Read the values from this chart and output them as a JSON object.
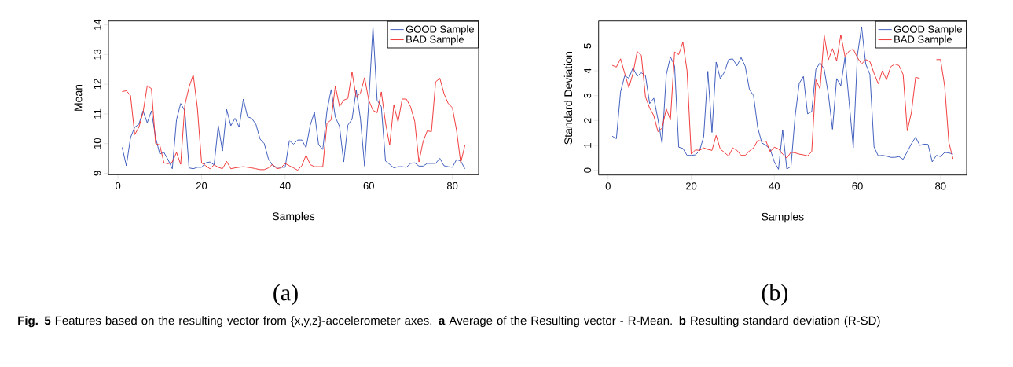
{
  "chart_data": [
    {
      "type": "line",
      "xlabel": "Samples",
      "ylabel": "Mean",
      "xlim": [
        -2.28,
        86.28
      ],
      "ylim": [
        8.95,
        14.13
      ],
      "xticks": [
        0,
        20,
        40,
        60,
        80
      ],
      "yticks": [
        9,
        10,
        11,
        12,
        13,
        14
      ],
      "legend": "top right",
      "x": [
        1,
        2,
        3,
        4,
        5,
        6,
        7,
        8,
        9,
        10,
        11,
        12,
        13,
        14,
        15,
        16,
        17,
        18,
        19,
        20,
        21,
        22,
        23,
        24,
        25,
        26,
        27,
        28,
        29,
        30,
        31,
        32,
        33,
        34,
        35,
        36,
        37,
        38,
        39,
        40,
        41,
        42,
        43,
        44,
        45,
        46,
        47,
        48,
        49,
        50,
        51,
        52,
        53,
        54,
        55,
        56,
        57,
        58,
        59,
        60,
        61,
        62,
        63,
        64,
        65,
        66,
        67,
        68,
        69,
        70,
        71,
        72,
        73,
        74,
        75,
        76,
        77,
        78,
        79,
        80,
        81,
        82,
        83
      ],
      "series": [
        {
          "name": "GOOD Sample",
          "color": "#2f4fb8",
          "values": [
            9.87,
            9.25,
            10.2,
            10.55,
            10.65,
            11.1,
            10.7,
            11.1,
            10.2,
            9.65,
            9.7,
            9.45,
            9.15,
            10.8,
            11.35,
            11.1,
            9.18,
            9.15,
            9.2,
            9.2,
            9.35,
            9.38,
            9.28,
            10.6,
            9.75,
            11.15,
            10.6,
            10.85,
            10.55,
            11.5,
            10.9,
            10.85,
            10.65,
            10.15,
            10.0,
            9.48,
            9.26,
            9.2,
            9.2,
            9.2,
            10.1,
            9.98,
            10.12,
            10.12,
            9.86,
            10.62,
            11.06,
            9.96,
            9.8,
            11.1,
            11.82,
            10.89,
            10.58,
            9.38,
            10.62,
            10.82,
            11.8,
            10.84,
            9.24,
            11.4,
            13.94,
            11.46,
            11.24,
            9.41,
            9.3,
            9.18,
            9.22,
            9.22,
            9.2,
            9.33,
            9.35,
            9.24,
            9.24,
            9.33,
            9.33,
            9.33,
            9.5,
            9.25,
            9.22,
            9.2,
            9.46,
            9.41,
            9.15
          ]
        },
        {
          "name": "BAD Sample",
          "color": "#f02828",
          "values": [
            11.75,
            11.78,
            11.62,
            10.3,
            10.55,
            11.05,
            11.95,
            11.85,
            10.0,
            9.95,
            9.35,
            9.32,
            9.38,
            9.7,
            9.3,
            11.3,
            11.9,
            12.32,
            11.2,
            9.35,
            9.25,
            9.15,
            9.28,
            9.2,
            9.15,
            9.4,
            9.15,
            9.18,
            9.2,
            9.22,
            9.2,
            9.18,
            9.15,
            9.12,
            9.12,
            9.18,
            9.3,
            9.15,
            9.18,
            9.33,
            9.25,
            9.18,
            9.1,
            9.26,
            9.61,
            9.29,
            9.22,
            9.22,
            9.22,
            10.68,
            10.8,
            11.94,
            11.25,
            11.46,
            11.52,
            12.41,
            11.55,
            11.7,
            12.22,
            11.46,
            11.12,
            11.04,
            11.74,
            10.7,
            9.94,
            11.3,
            10.73,
            11.5,
            11.5,
            11.24,
            10.75,
            9.38,
            10.07,
            10.43,
            10.4,
            12.08,
            12.2,
            11.68,
            11.35,
            11.21,
            10.45,
            9.35,
            9.94
          ]
        }
      ],
      "annotations": [
        "(a)",
        "**Fig. 5** Features based on the resulting vector from {x,y,z}-accelerometer axes. **a** Average of the Resulting vector - R-Mean. **b** Resulting standard deviation (R-SD)"
      ]
    },
    {
      "type": "line",
      "xlabel": "Samples",
      "ylabel": "Standard Deviation",
      "xlim": [
        -2.28,
        86.28
      ],
      "ylim": [
        -0.19,
        6.0
      ],
      "xticks": [
        0,
        20,
        40,
        60,
        80
      ],
      "yticks": [
        0,
        1,
        2,
        3,
        4,
        5
      ],
      "legend": "top right",
      "x": [
        1,
        2,
        3,
        4,
        5,
        6,
        7,
        8,
        9,
        10,
        11,
        12,
        13,
        14,
        15,
        16,
        17,
        18,
        19,
        20,
        21,
        22,
        23,
        24,
        25,
        26,
        27,
        28,
        29,
        30,
        31,
        32,
        33,
        34,
        35,
        36,
        37,
        38,
        39,
        40,
        41,
        42,
        43,
        44,
        45,
        46,
        47,
        48,
        49,
        50,
        51,
        52,
        53,
        54,
        55,
        56,
        57,
        58,
        59,
        60,
        61,
        62,
        63,
        64,
        65,
        66,
        67,
        68,
        69,
        70,
        71,
        72,
        73,
        74,
        75,
        76,
        77,
        78,
        79,
        80,
        81,
        82,
        83
      ],
      "series": [
        {
          "name": "GOOD Sample",
          "color": "#2f4fb8",
          "values": [
            1.37,
            1.27,
            3.15,
            3.8,
            3.7,
            4.12,
            3.78,
            3.92,
            3.8,
            2.68,
            2.9,
            2.05,
            1.07,
            3.85,
            4.56,
            4.2,
            0.93,
            0.88,
            0.6,
            0.6,
            0.62,
            0.78,
            1.35,
            3.98,
            1.52,
            4.35,
            3.68,
            3.95,
            4.45,
            4.48,
            4.2,
            4.53,
            4.18,
            3.25,
            3.0,
            1.72,
            1.1,
            1.0,
            0.85,
            0.34,
            0.04,
            1.62,
            0.05,
            0.15,
            2.17,
            3.5,
            3.77,
            2.27,
            2.36,
            4.06,
            4.32,
            4.06,
            3.06,
            1.65,
            3.69,
            3.4,
            4.53,
            2.75,
            0.91,
            4.63,
            5.77,
            4.27,
            3.85,
            0.94,
            0.58,
            0.6,
            0.57,
            0.52,
            0.52,
            0.55,
            0.44,
            0.75,
            1.07,
            1.33,
            1.0,
            1.05,
            1.04,
            0.34,
            0.6,
            0.55,
            0.72,
            0.7,
            0.65
          ]
        },
        {
          "name": "BAD Sample",
          "color": "#f02828",
          "values": [
            4.22,
            4.15,
            4.48,
            3.9,
            3.32,
            3.9,
            4.77,
            4.62,
            2.95,
            2.5,
            2.2,
            1.55,
            1.7,
            2.47,
            2.03,
            4.75,
            4.65,
            5.15,
            4.0,
            0.65,
            0.82,
            0.8,
            0.9,
            0.84,
            0.8,
            1.4,
            0.85,
            0.72,
            0.57,
            0.9,
            0.8,
            0.6,
            0.6,
            0.78,
            0.9,
            1.2,
            1.17,
            1.17,
            0.75,
            0.93,
            0.86,
            0.65,
            0.49,
            0.73,
            0.7,
            0.65,
            0.62,
            0.58,
            0.75,
            3.64,
            3.27,
            5.42,
            4.44,
            4.89,
            4.4,
            5.45,
            4.58,
            4.79,
            4.87,
            4.53,
            4.27,
            4.45,
            4.37,
            3.9,
            3.48,
            4.0,
            3.64,
            4.16,
            4.27,
            4.21,
            3.85,
            1.59,
            2.33,
            3.74,
            3.69,
            null,
            null,
            null,
            4.45,
            4.45,
            3.38,
            1.12,
            0.46
          ]
        }
      ],
      "annotations": [
        "(b)"
      ]
    }
  ]
}
